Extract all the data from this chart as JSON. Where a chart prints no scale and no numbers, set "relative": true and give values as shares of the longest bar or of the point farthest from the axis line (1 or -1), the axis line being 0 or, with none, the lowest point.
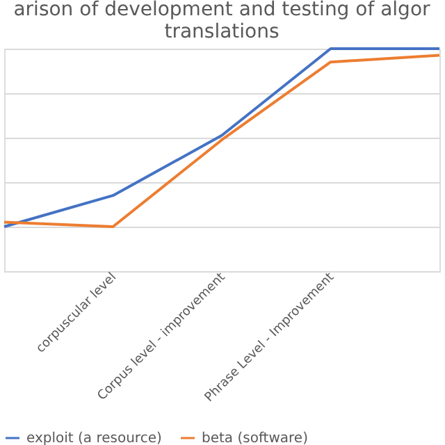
{
  "chart_data": {
    "type": "line",
    "title": "arison of development and testing of algor\ntranslations",
    "categories": [
      null,
      "corpuscular level",
      "Corpus level - improvement",
      "Phrase Level - Improvement",
      null
    ],
    "relative": true,
    "grid": "y",
    "legend": "bottom",
    "marker": "none",
    "line_style": "solid",
    "series": [
      {
        "name": "exploit (a resource)",
        "color": "#4472c4",
        "values": [
          0.2,
          0.34,
          0.61,
          1,
          1
        ]
      },
      {
        "name": "beta (software)",
        "color": "#ed7d31",
        "values": [
          0.22,
          0.2,
          0.59,
          0.94,
          0.97
        ]
      }
    ]
  }
}
